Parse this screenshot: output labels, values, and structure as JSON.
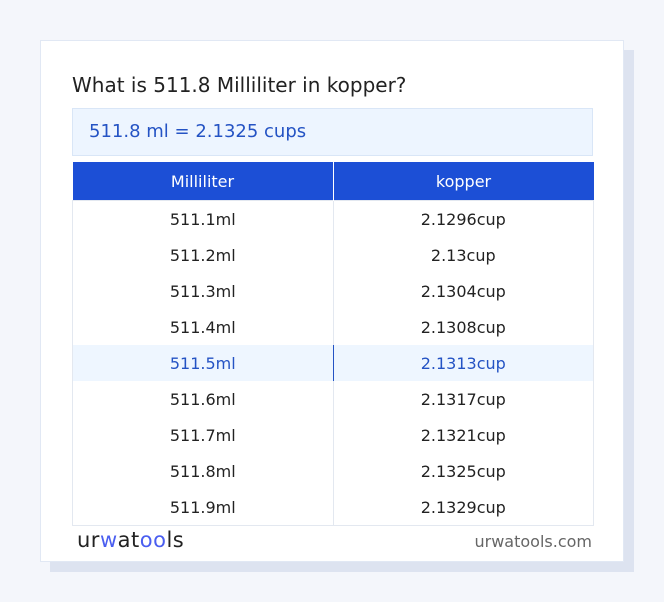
{
  "title": "What is 511.8 Milliliter in kopper?",
  "result": "511.8 ml = 2.1325 cups",
  "table": {
    "headers": [
      "Milliliter",
      "kopper"
    ],
    "rows": [
      [
        "511.1ml",
        "2.1296cup"
      ],
      [
        "511.2ml",
        "2.13cup"
      ],
      [
        "511.3ml",
        "2.1304cup"
      ],
      [
        "511.4ml",
        "2.1308cup"
      ],
      [
        "511.5ml",
        "2.1313cup"
      ],
      [
        "511.6ml",
        "2.1317cup"
      ],
      [
        "511.7ml",
        "2.1321cup"
      ],
      [
        "511.8ml",
        "2.1325cup"
      ],
      [
        "511.9ml",
        "2.1329cup"
      ]
    ],
    "highlighted_row": 4
  },
  "footer": {
    "logo": "urwatools",
    "domain": "urwatools.com"
  },
  "colors": {
    "accent": "#1c4fd6",
    "highlight_text": "#2453c4"
  }
}
